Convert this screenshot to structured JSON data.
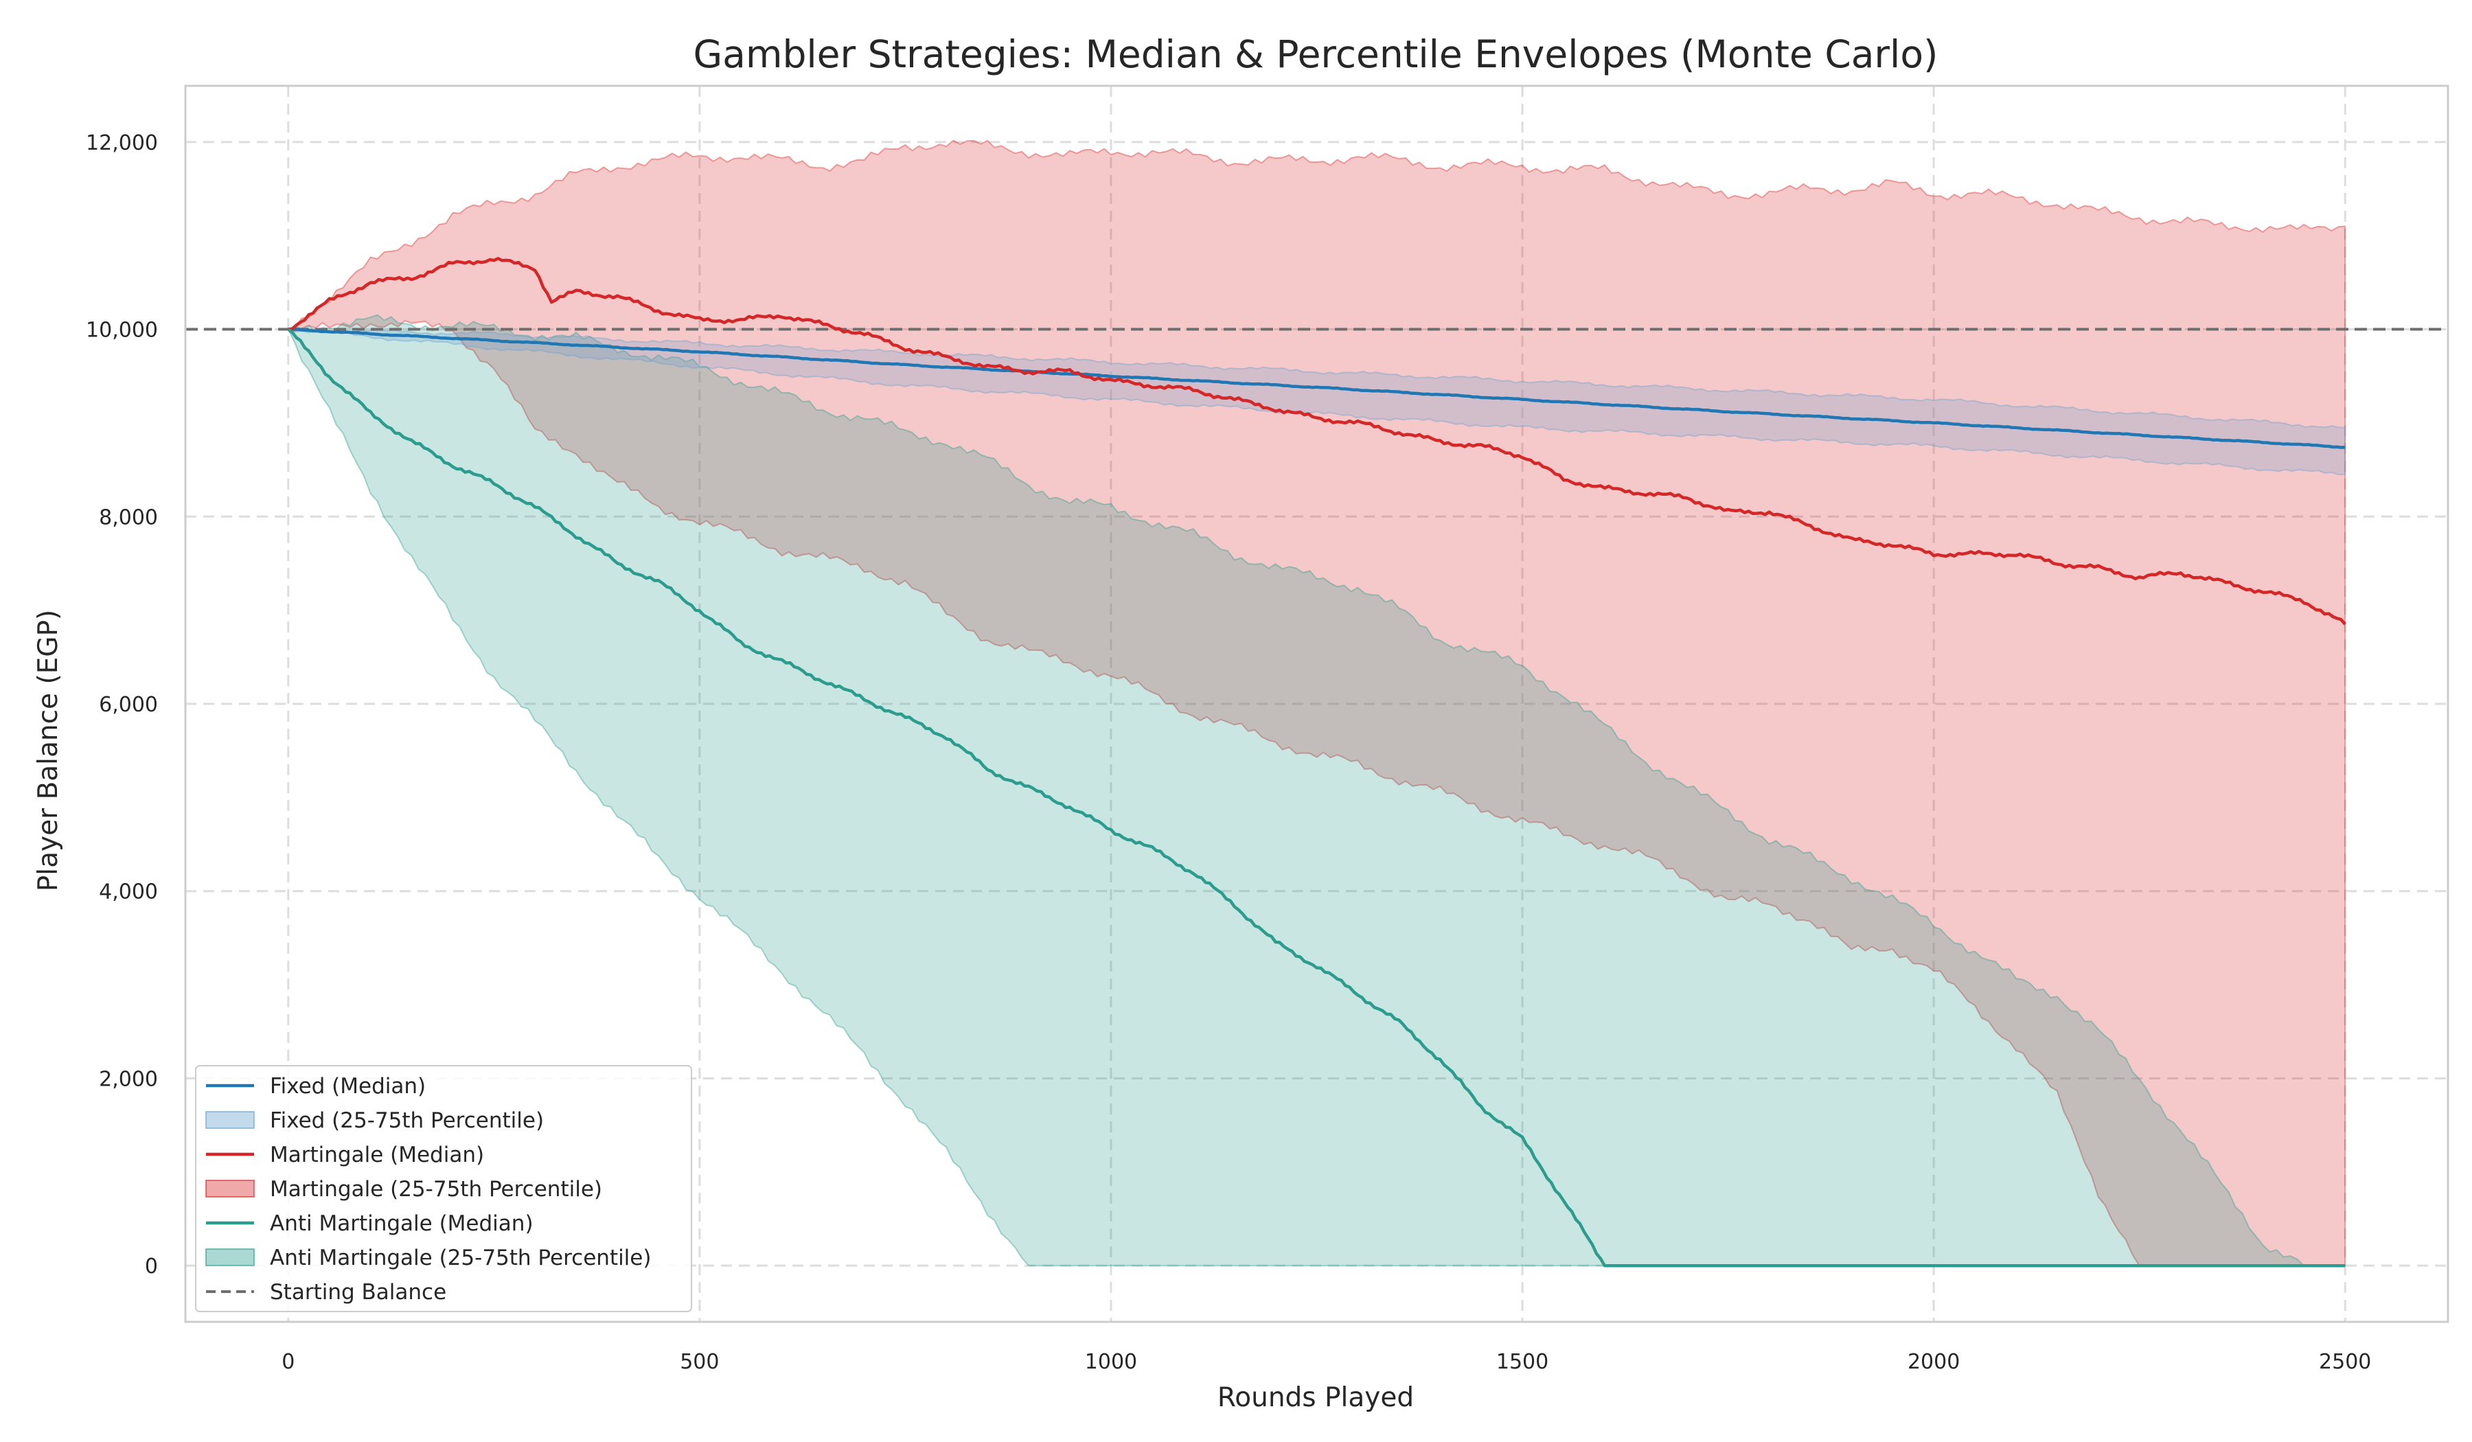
{
  "chart_data": {
    "type": "line",
    "title": "Gambler Strategies: Median & Percentile Envelopes (Monte Carlo)",
    "xlabel": "Rounds Played",
    "ylabel": "Player Balance (EGP)",
    "xlim": [
      -125,
      2625
    ],
    "ylim": [
      -600,
      12600
    ],
    "xticks": [
      0,
      500,
      1000,
      1500,
      2000,
      2500
    ],
    "yticks": [
      0,
      2000,
      4000,
      6000,
      8000,
      10000,
      12000
    ],
    "xtick_labels": [
      "0",
      "500",
      "1000",
      "1500",
      "2000",
      "2500"
    ],
    "ytick_labels": [
      "0",
      "2,000",
      "4,000",
      "6,000",
      "8,000",
      "10,000",
      "12,000"
    ],
    "grid": true,
    "legend_position": "lower-left",
    "reference_line": {
      "name": "Starting Balance",
      "y": 10000,
      "color": "#6e6e6e",
      "style": "dashed"
    },
    "series": [
      {
        "name": "Martingale (25-75th Percentile)",
        "kind": "band",
        "color": "#d62728",
        "x": [
          0,
          50,
          100,
          150,
          200,
          250,
          300,
          350,
          400,
          450,
          500,
          550,
          600,
          650,
          700,
          750,
          800,
          850,
          900,
          950,
          1000,
          1050,
          1100,
          1150,
          1200,
          1250,
          1300,
          1350,
          1400,
          1450,
          1500,
          1550,
          1600,
          1650,
          1700,
          1750,
          1800,
          1850,
          1900,
          1950,
          2000,
          2050,
          2100,
          2150,
          2200,
          2250,
          2300,
          2350,
          2400,
          2450,
          2500
        ],
        "lower": [
          10000,
          10000,
          10080,
          10050,
          9980,
          9600,
          8900,
          8700,
          8350,
          8100,
          7950,
          7800,
          7650,
          7550,
          7450,
          7300,
          6950,
          6700,
          6550,
          6450,
          6300,
          6100,
          5900,
          5750,
          5600,
          5450,
          5350,
          5200,
          5050,
          4900,
          4750,
          4600,
          4500,
          4350,
          4150,
          3900,
          3850,
          3700,
          3350,
          3400,
          3150,
          2750,
          2350,
          1800,
          800,
          0,
          0,
          0,
          0,
          0,
          0
        ],
        "upper": [
          10000,
          10350,
          10700,
          10950,
          11200,
          11350,
          11450,
          11650,
          11750,
          11800,
          11850,
          11850,
          11800,
          11750,
          11800,
          11950,
          12000,
          11950,
          11900,
          11850,
          11900,
          11900,
          11850,
          11800,
          11800,
          11800,
          11850,
          11800,
          11750,
          11750,
          11750,
          11700,
          11700,
          11600,
          11500,
          11450,
          11450,
          11500,
          11500,
          11550,
          11450,
          11450,
          11400,
          11350,
          11250,
          11200,
          11150,
          11100,
          11100,
          11050,
          11100
        ]
      },
      {
        "name": "Anti Martingale (25-75th Percentile)",
        "kind": "band",
        "color": "#2a9d8f",
        "x": [
          0,
          50,
          100,
          150,
          200,
          250,
          300,
          350,
          400,
          450,
          500,
          550,
          600,
          650,
          700,
          750,
          800,
          850,
          900,
          950,
          1000,
          1050,
          1100,
          1150,
          1200,
          1250,
          1300,
          1350,
          1400,
          1450,
          1500,
          1550,
          1600,
          1650,
          1700,
          1750,
          1800,
          1850,
          1900,
          1950,
          2000,
          2050,
          2100,
          2150,
          2200,
          2250,
          2300,
          2350,
          2400,
          2450,
          2500
        ],
        "lower": [
          10000,
          9100,
          8300,
          7550,
          6900,
          6300,
          5800,
          5300,
          4800,
          4350,
          3950,
          3550,
          3150,
          2700,
          2250,
          1750,
          1200,
          600,
          0,
          0,
          0,
          0,
          0,
          0,
          0,
          0,
          0,
          0,
          0,
          0,
          0,
          0,
          0,
          0,
          0,
          0,
          0,
          0,
          0,
          0,
          0,
          0,
          0,
          0,
          0,
          0,
          0,
          0,
          0,
          0,
          0
        ],
        "upper": [
          10000,
          10050,
          10100,
          10050,
          10050,
          10000,
          9950,
          9900,
          9800,
          9700,
          9600,
          9450,
          9300,
          9150,
          9050,
          8900,
          8800,
          8600,
          8350,
          8150,
          8100,
          7950,
          7800,
          7600,
          7450,
          7350,
          7250,
          7000,
          6700,
          6550,
          6400,
          6100,
          5750,
          5400,
          5100,
          4850,
          4550,
          4350,
          4150,
          3900,
          3650,
          3350,
          3050,
          2900,
          2500,
          2000,
          1450,
          850,
          250,
          0,
          0
        ]
      },
      {
        "name": "Fixed (25-75th Percentile)",
        "kind": "band",
        "color": "#6a9fcf",
        "x": [
          0,
          250,
          500,
          750,
          1000,
          1250,
          1500,
          1750,
          2000,
          2250,
          2500
        ],
        "lower": [
          10000,
          9800,
          9600,
          9400,
          9250,
          9100,
          8950,
          8850,
          8750,
          8600,
          8450
        ],
        "upper": [
          10000,
          9950,
          9850,
          9750,
          9650,
          9550,
          9450,
          9350,
          9250,
          9100,
          8950
        ]
      },
      {
        "name": "Fixed (Median)",
        "kind": "line",
        "color": "#1f77b4",
        "x": [
          0,
          250,
          500,
          750,
          1000,
          1250,
          1500,
          1750,
          2000,
          2250,
          2500
        ],
        "y": [
          10000,
          9880,
          9760,
          9620,
          9500,
          9380,
          9250,
          9120,
          9000,
          8870,
          8740
        ]
      },
      {
        "name": "Martingale (Median)",
        "kind": "line",
        "color": "#d62728",
        "x": [
          0,
          50,
          100,
          150,
          200,
          250,
          300,
          320,
          350,
          400,
          450,
          500,
          550,
          600,
          650,
          700,
          750,
          800,
          850,
          900,
          950,
          1000,
          1050,
          1100,
          1150,
          1200,
          1250,
          1300,
          1350,
          1400,
          1450,
          1500,
          1550,
          1600,
          1650,
          1700,
          1750,
          1800,
          1850,
          1900,
          1950,
          2000,
          2050,
          2100,
          2150,
          2200,
          2250,
          2300,
          2350,
          2400,
          2450,
          2500
        ],
        "y": [
          10000,
          10300,
          10500,
          10550,
          10700,
          10750,
          10650,
          10300,
          10400,
          10350,
          10200,
          10100,
          10100,
          10150,
          10050,
          9950,
          9800,
          9700,
          9600,
          9550,
          9550,
          9450,
          9400,
          9350,
          9250,
          9150,
          9050,
          9000,
          8900,
          8800,
          8750,
          8650,
          8400,
          8300,
          8250,
          8200,
          8050,
          8050,
          7900,
          7750,
          7700,
          7600,
          7600,
          7600,
          7500,
          7450,
          7350,
          7400,
          7300,
          7200,
          7100,
          6850
        ]
      },
      {
        "name": "Anti Martingale (Median)",
        "kind": "line",
        "color": "#2a9d8f",
        "x": [
          0,
          50,
          100,
          150,
          200,
          250,
          300,
          350,
          400,
          450,
          500,
          550,
          600,
          650,
          700,
          750,
          800,
          850,
          900,
          950,
          1000,
          1050,
          1100,
          1150,
          1200,
          1250,
          1300,
          1350,
          1400,
          1450,
          1500,
          1550,
          1600,
          1650,
          1700,
          1750,
          1800,
          1850,
          1900,
          1950,
          2000,
          2050,
          2100,
          2150,
          2200,
          2250,
          2300,
          2350,
          2400,
          2450,
          2500
        ],
        "y": [
          10000,
          9500,
          9100,
          8800,
          8550,
          8350,
          8100,
          7800,
          7500,
          7300,
          7000,
          6650,
          6450,
          6250,
          6050,
          5850,
          5650,
          5300,
          5100,
          4900,
          4650,
          4450,
          4200,
          3850,
          3450,
          3200,
          2900,
          2600,
          2200,
          1700,
          1350,
          700,
          0,
          0,
          0,
          0,
          0,
          0,
          0,
          0,
          0,
          0,
          0,
          0,
          0,
          0,
          0,
          0,
          0,
          0,
          0
        ]
      }
    ],
    "legend": [
      {
        "label": "Fixed (Median)",
        "type": "line",
        "color": "#1f77b4"
      },
      {
        "label": "Fixed (25-75th Percentile)",
        "type": "patch",
        "color": "#6a9fcf"
      },
      {
        "label": "Martingale (Median)",
        "type": "line",
        "color": "#d62728"
      },
      {
        "label": "Martingale (25-75th Percentile)",
        "type": "patch",
        "color": "#d62728"
      },
      {
        "label": "Anti Martingale (Median)",
        "type": "line",
        "color": "#2a9d8f"
      },
      {
        "label": "Anti Martingale (25-75th Percentile)",
        "type": "patch",
        "color": "#2a9d8f"
      },
      {
        "label": "Starting Balance",
        "type": "dashed",
        "color": "#6e6e6e"
      }
    ]
  }
}
